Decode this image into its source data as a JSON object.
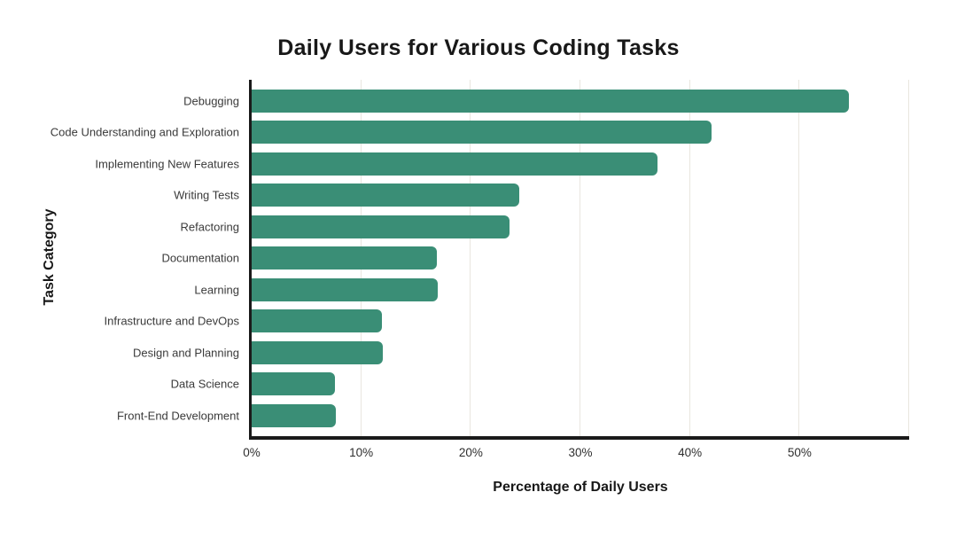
{
  "chart_data": {
    "type": "bar",
    "orientation": "horizontal",
    "title": "Daily Users for Various Coding Tasks",
    "xlabel": "Percentage of Daily Users",
    "ylabel": "Task Category",
    "categories": [
      "Debugging",
      "Code Understanding and Exploration",
      "Implementing New Features",
      "Writing Tests",
      "Refactoring",
      "Documentation",
      "Learning",
      "Infrastructure and DevOps",
      "Design and Planning",
      "Data Science",
      "Front-End Development"
    ],
    "values": [
      54.5,
      42,
      37,
      24.4,
      23.5,
      16.9,
      17,
      11.9,
      12,
      7.6,
      7.7
    ],
    "value_unit": "%",
    "xlim": [
      0,
      60
    ],
    "x_ticks": [
      {
        "value": 0,
        "label": "0%"
      },
      {
        "value": 10,
        "label": "10%"
      },
      {
        "value": 20,
        "label": "20%"
      },
      {
        "value": 30,
        "label": "30%"
      },
      {
        "value": 40,
        "label": "40%"
      },
      {
        "value": 50,
        "label": "50%"
      }
    ],
    "grid": "vertical",
    "legend": "none",
    "colors": {
      "bar": "#3a8e76",
      "gridline": "#e9e6df",
      "axis_spine": "#1a1a1a",
      "title_text": "#181818",
      "tick_text": "#2e2e2e",
      "category_text": "#3a3a3a",
      "background": "#ffffff"
    }
  }
}
